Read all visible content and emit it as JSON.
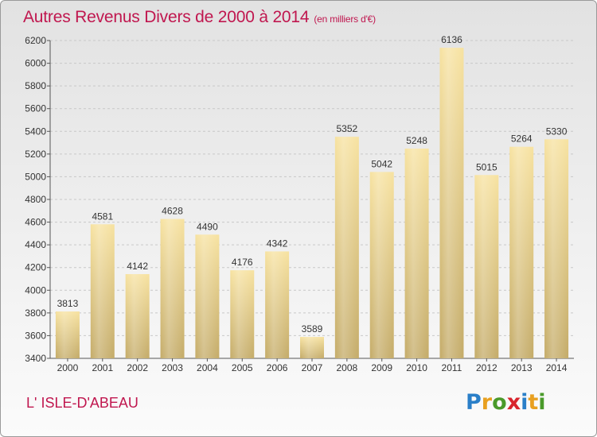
{
  "header": {
    "title": "Autres Revenus Divers de 2000 à 2014",
    "unit": "(en milliers d'€)"
  },
  "footer": {
    "place": "L' ISLE-D'ABEAU",
    "logo_text": "Proxiti"
  },
  "colors": {
    "title": "#c0174f",
    "bar_light": "#f7e2a0",
    "bar_dark": "#c4ab68",
    "grid": "#c8c8c8",
    "axis_text": "#333333"
  },
  "chart_data": {
    "type": "bar",
    "title": "Autres Revenus Divers de 2000 à 2014",
    "subtitle": "(en milliers d'€)",
    "xlabel": "",
    "ylabel": "",
    "categories": [
      "2000",
      "2001",
      "2002",
      "2003",
      "2004",
      "2005",
      "2006",
      "2007",
      "2008",
      "2009",
      "2010",
      "2011",
      "2012",
      "2013",
      "2014"
    ],
    "values": [
      3813,
      4581,
      4142,
      4628,
      4490,
      4176,
      4342,
      3589,
      5352,
      5042,
      5248,
      6136,
      5015,
      5264,
      5330
    ],
    "ylim": [
      3400,
      6200
    ],
    "yticks": [
      3400,
      3600,
      3800,
      4000,
      4200,
      4400,
      4600,
      4800,
      5000,
      5200,
      5400,
      5600,
      5800,
      6000,
      6200
    ],
    "grid": "horizontal, dashed",
    "data_labels": true,
    "legend": "none"
  }
}
